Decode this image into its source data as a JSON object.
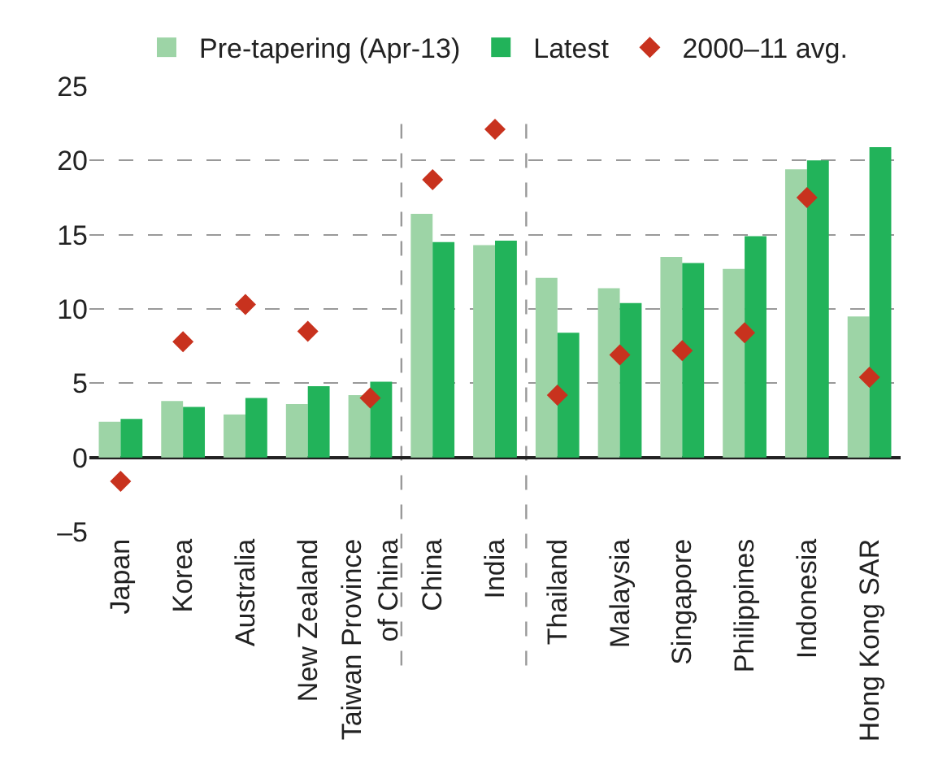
{
  "chart_data": {
    "type": "bar",
    "categories": [
      "Japan",
      "Korea",
      "Australia",
      "New Zealand",
      "Taiwan Province\nof China",
      "China",
      "India",
      "Thailand",
      "Malaysia",
      "Singapore",
      "Philippines",
      "Indonesia",
      "Hong Kong SAR"
    ],
    "series": [
      {
        "name": "Pre-tapering (Apr-13)",
        "color": "#9dd4a6",
        "values": [
          2.4,
          3.8,
          2.9,
          3.6,
          4.2,
          16.4,
          14.3,
          12.1,
          11.4,
          13.5,
          12.7,
          19.4,
          9.5
        ]
      },
      {
        "name": "Latest",
        "color": "#22b35a",
        "values": [
          2.6,
          3.4,
          4.0,
          4.8,
          5.1,
          14.5,
          14.6,
          8.4,
          10.4,
          13.1,
          14.9,
          20.0,
          20.9
        ]
      },
      {
        "name": "2000–11 avg.",
        "type": "scatter",
        "color": "#c8321e",
        "marker": "diamond",
        "values": [
          -1.6,
          7.8,
          10.3,
          8.5,
          4.0,
          18.7,
          22.1,
          4.2,
          6.9,
          7.2,
          8.4,
          17.5,
          5.4
        ]
      }
    ],
    "ylim": [
      -5,
      25
    ],
    "yticks": [
      {
        "value": -5,
        "label": "–5"
      },
      0,
      5,
      10,
      15,
      20,
      25
    ],
    "grid": "y",
    "legend": "top"
  }
}
